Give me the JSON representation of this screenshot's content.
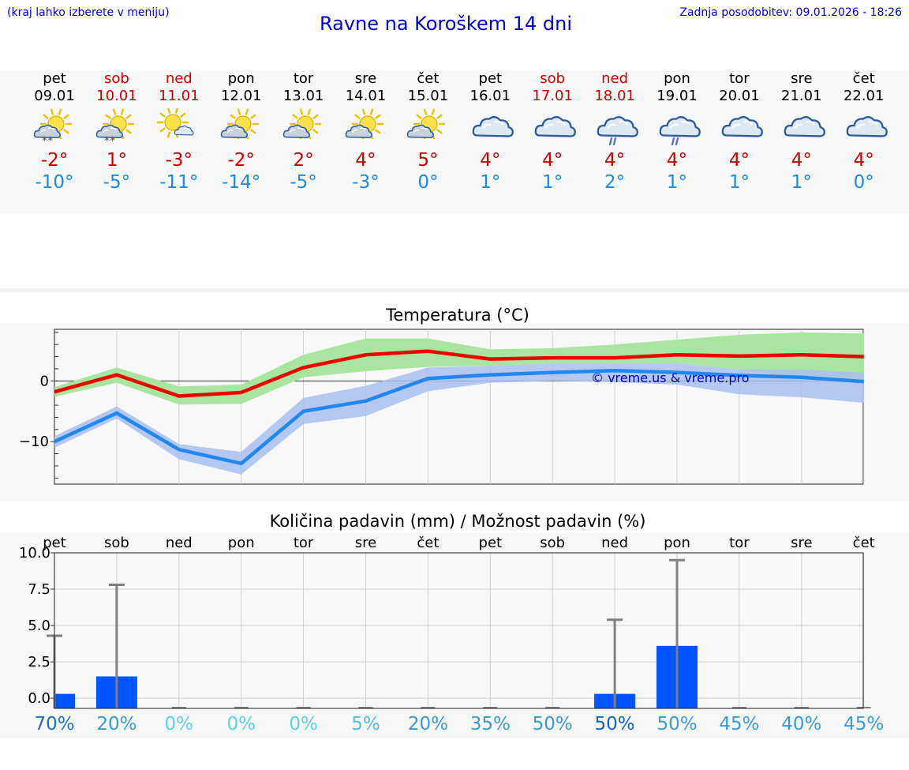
{
  "header": {
    "note_left": "(kraj lahko izberete v meniju)",
    "title": "Ravne na Koroškem 14 dni",
    "note_right": "Zadnja posodobitev: 09.01.2026 - 18:26"
  },
  "colors": {
    "max": "#ee0000",
    "min": "#2288ee",
    "max_band": "#a8e6a0",
    "min_band": "#a8c0f0",
    "bar": "#0055ff",
    "whisker": "#808080"
  },
  "days": [
    {
      "name": "pet",
      "date": "09.01",
      "weekend": false,
      "icon": "sun-cloud-snow-icon",
      "max": "-2°",
      "min": "-10°"
    },
    {
      "name": "sob",
      "date": "10.01",
      "weekend": true,
      "icon": "sun-cloud-snow-icon",
      "max": "1°",
      "min": "-5°"
    },
    {
      "name": "ned",
      "date": "11.01",
      "weekend": true,
      "icon": "sun-small-cloud-icon",
      "max": "-3°",
      "min": "-11°"
    },
    {
      "name": "pon",
      "date": "12.01",
      "weekend": false,
      "icon": "sun-cloud-icon",
      "max": "-2°",
      "min": "-14°"
    },
    {
      "name": "tor",
      "date": "13.01",
      "weekend": false,
      "icon": "sun-cloud-icon",
      "max": "2°",
      "min": "-5°"
    },
    {
      "name": "sre",
      "date": "14.01",
      "weekend": false,
      "icon": "sun-cloud-icon",
      "max": "4°",
      "min": "-3°"
    },
    {
      "name": "čet",
      "date": "15.01",
      "weekend": false,
      "icon": "sun-cloud-icon",
      "max": "5°",
      "min": "0°"
    },
    {
      "name": "pet",
      "date": "16.01",
      "weekend": false,
      "icon": "cloud-icon",
      "max": "4°",
      "min": "1°"
    },
    {
      "name": "sob",
      "date": "17.01",
      "weekend": true,
      "icon": "cloud-icon",
      "max": "4°",
      "min": "1°"
    },
    {
      "name": "ned",
      "date": "18.01",
      "weekend": true,
      "icon": "cloud-rain-icon",
      "max": "4°",
      "min": "2°"
    },
    {
      "name": "pon",
      "date": "19.01",
      "weekend": false,
      "icon": "cloud-rain-icon",
      "max": "4°",
      "min": "1°"
    },
    {
      "name": "tor",
      "date": "20.01",
      "weekend": false,
      "icon": "cloud-icon",
      "max": "4°",
      "min": "1°"
    },
    {
      "name": "sre",
      "date": "21.01",
      "weekend": false,
      "icon": "cloud-icon",
      "max": "4°",
      "min": "1°"
    },
    {
      "name": "čet",
      "date": "22.01",
      "weekend": false,
      "icon": "cloud-icon",
      "max": "4°",
      "min": "0°"
    }
  ],
  "chart_data": [
    {
      "type": "line",
      "title": "Temperatura (°C)",
      "ylim": [
        -17,
        8.5
      ],
      "yticks": [
        0,
        -10
      ],
      "ytick_labels": [
        "0",
        "−10"
      ],
      "zero_line": true,
      "watermark": "© vreme.us & vreme.pro",
      "x": [
        0,
        1,
        2,
        3,
        4,
        5,
        6,
        7,
        8,
        9,
        10,
        11,
        12,
        13
      ],
      "series": [
        {
          "name": "max",
          "values": [
            -1.8,
            1.0,
            -2.5,
            -1.9,
            2.2,
            4.3,
            4.9,
            3.6,
            3.8,
            3.8,
            4.3,
            4.1,
            4.3,
            4.0
          ],
          "band_high": [
            -1.0,
            2.2,
            -0.9,
            -0.6,
            4.3,
            7.0,
            7.0,
            5.2,
            5.4,
            6.0,
            6.8,
            7.6,
            8.0,
            7.8
          ],
          "band_low": [
            -2.6,
            -0.3,
            -3.9,
            -3.8,
            0.6,
            1.6,
            2.3,
            2.5,
            2.9,
            2.9,
            2.9,
            1.9,
            0.5,
            -0.3
          ]
        },
        {
          "name": "min",
          "values": [
            -10.0,
            -5.3,
            -11.3,
            -13.6,
            -5.0,
            -3.3,
            0.4,
            1.0,
            1.4,
            1.7,
            1.4,
            0.9,
            0.6,
            -0.1
          ],
          "band_high": [
            -9.1,
            -4.2,
            -10.4,
            -11.7,
            -2.8,
            -0.8,
            2.2,
            2.5,
            2.9,
            2.9,
            2.9,
            1.9,
            1.9,
            1.4
          ],
          "band_low": [
            -11.0,
            -6.2,
            -12.9,
            -15.4,
            -7.1,
            -5.8,
            -1.7,
            -0.3,
            0.0,
            -0.2,
            -0.6,
            -2.2,
            -2.7,
            -3.6
          ]
        }
      ]
    },
    {
      "type": "bar",
      "title": "Količina padavin (mm) / Možnost padavin (%)",
      "categories": [
        "pet",
        "sob",
        "ned",
        "pon",
        "tor",
        "sre",
        "čet",
        "pet",
        "sob",
        "ned",
        "pon",
        "tor",
        "sre",
        "čet"
      ],
      "ylim": [
        -0.7,
        10.0
      ],
      "yticks": [
        10.0,
        7.5,
        5.0,
        2.5,
        0.0
      ],
      "ytick_labels": [
        "10.0",
        "7.5",
        "5.0",
        "2.5",
        "0.0"
      ],
      "values": [
        0.3,
        1.5,
        0,
        0,
        0,
        0,
        0,
        0,
        0,
        0.3,
        3.6,
        0,
        0,
        0
      ],
      "whisker_max": [
        4.3,
        7.8,
        0,
        0,
        0,
        0,
        0,
        0,
        0,
        5.4,
        9.5,
        0,
        0,
        0
      ],
      "probability": [
        "70%",
        "20%",
        "0%",
        "0%",
        "0%",
        "5%",
        "20%",
        "35%",
        "50%",
        "50%",
        "50%",
        "45%",
        "40%",
        "45%"
      ],
      "prob_colors": [
        "#1f6fc0",
        "#3b9ad8",
        "#5dd0e8",
        "#5dd0e8",
        "#5dd0e8",
        "#50c0e0",
        "#3b9ad8",
        "#3b9ad8",
        "#3b9ad8",
        "#1565c0",
        "#3b9ad8",
        "#3b9ad8",
        "#3b9ad8",
        "#3b9ad8"
      ]
    }
  ]
}
